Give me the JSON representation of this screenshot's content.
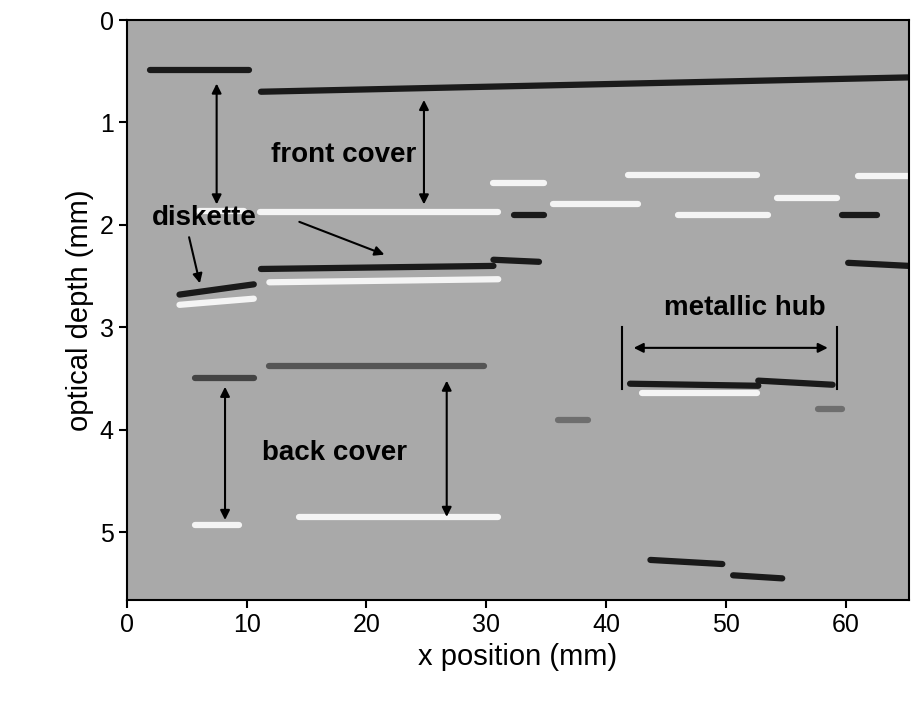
{
  "chart_data": {
    "type": "image",
    "x_label": "x position (mm)",
    "y_label": "optical depth (mm)",
    "xlim": [
      0,
      65.3
    ],
    "xticks": [
      0,
      10,
      20,
      30,
      40,
      50,
      60
    ],
    "ylim": [
      5.66,
      0
    ],
    "yticks": [
      0,
      1,
      2,
      3,
      4,
      5
    ],
    "reflections": [
      {
        "x": [
          1.9,
          10.2
        ],
        "depth": [
          0.49,
          0.49
        ],
        "color": "#1a1a1a"
      },
      {
        "x": [
          11.2,
          65.3
        ],
        "depth": [
          0.7,
          0.56
        ],
        "color": "#1a1a1a"
      },
      {
        "x": [
          32.3,
          34.8
        ],
        "depth": [
          1.9,
          1.9
        ],
        "color": "#1a1a1a"
      },
      {
        "x": [
          59.7,
          62.6
        ],
        "depth": [
          1.9,
          1.9
        ],
        "color": "#1a1a1a"
      },
      {
        "x": [
          11.2,
          30.6
        ],
        "depth": [
          2.43,
          2.4
        ],
        "color": "#1a1a1a"
      },
      {
        "x": [
          30.6,
          34.4
        ],
        "depth": [
          2.34,
          2.36
        ],
        "color": "#1a1a1a"
      },
      {
        "x": [
          4.4,
          10.6
        ],
        "depth": [
          2.68,
          2.58
        ],
        "color": "#1a1a1a"
      },
      {
        "x": [
          60.2,
          65.3
        ],
        "depth": [
          2.37,
          2.4
        ],
        "color": "#1a1a1a"
      },
      {
        "x": [
          11.9,
          29.8
        ],
        "depth": [
          3.38,
          3.38
        ],
        "color": "#555555"
      },
      {
        "x": [
          5.7,
          10.6
        ],
        "depth": [
          3.49,
          3.49
        ],
        "color": "#444444"
      },
      {
        "x": [
          42.0,
          52.7
        ],
        "depth": [
          3.55,
          3.57
        ],
        "color": "#1a1a1a"
      },
      {
        "x": [
          52.7,
          58.9
        ],
        "depth": [
          3.52,
          3.56
        ],
        "color": "#1a1a1a"
      },
      {
        "x": [
          43.7,
          49.7
        ],
        "depth": [
          5.27,
          5.31
        ],
        "color": "#1a1a1a"
      },
      {
        "x": [
          50.6,
          54.7
        ],
        "depth": [
          5.42,
          5.45
        ],
        "color": "#1a1a1a"
      },
      {
        "x": [
          36.0,
          38.5
        ],
        "depth": [
          3.9,
          3.9
        ],
        "color": "#6e6e6e"
      },
      {
        "x": [
          57.7,
          59.7
        ],
        "depth": [
          3.8,
          3.8
        ],
        "color": "#6e6e6e"
      },
      {
        "x": [
          11.1,
          31.0
        ],
        "depth": [
          1.87,
          1.87
        ],
        "color": "#f4f4f4"
      },
      {
        "x": [
          6.0,
          9.8
        ],
        "depth": [
          1.86,
          1.86
        ],
        "color": "#f4f4f4"
      },
      {
        "x": [
          30.6,
          34.8
        ],
        "depth": [
          1.59,
          1.59
        ],
        "color": "#f4f4f4"
      },
      {
        "x": [
          35.6,
          42.7
        ],
        "depth": [
          1.8,
          1.8
        ],
        "color": "#f4f4f4"
      },
      {
        "x": [
          46.0,
          53.5
        ],
        "depth": [
          1.9,
          1.9
        ],
        "color": "#f4f4f4"
      },
      {
        "x": [
          54.3,
          59.3
        ],
        "depth": [
          1.74,
          1.74
        ],
        "color": "#f4f4f4"
      },
      {
        "x": [
          41.8,
          52.6
        ],
        "depth": [
          1.51,
          1.51
        ],
        "color": "#f4f4f4"
      },
      {
        "x": [
          61.0,
          65.3
        ],
        "depth": [
          1.52,
          1.52
        ],
        "color": "#f4f4f4"
      },
      {
        "x": [
          11.9,
          31.0
        ],
        "depth": [
          2.56,
          2.53
        ],
        "color": "#f4f4f4"
      },
      {
        "x": [
          4.4,
          10.6
        ],
        "depth": [
          2.78,
          2.72
        ],
        "color": "#f4f4f4"
      },
      {
        "x": [
          14.4,
          31.0
        ],
        "depth": [
          4.85,
          4.85
        ],
        "color": "#f4f4f4"
      },
      {
        "x": [
          5.7,
          9.4
        ],
        "depth": [
          4.93,
          4.93
        ],
        "color": "#f4f4f4"
      },
      {
        "x": [
          43.0,
          52.6
        ],
        "depth": [
          3.64,
          3.64
        ],
        "color": "#f4f4f4"
      }
    ],
    "annotations": [
      {
        "text": "front cover",
        "x": 18.1,
        "y": 1.32,
        "double_arrows": [
          [
            [
              7.5,
              0.62
            ],
            [
              7.5,
              1.8
            ]
          ],
          [
            [
              24.8,
              0.78
            ],
            [
              24.8,
              1.8
            ]
          ]
        ],
        "arrows": [],
        "bars": []
      },
      {
        "text": "diskette",
        "x": 6.5,
        "y": 1.93,
        "double_arrows": [],
        "arrows": [
          [
            [
              14.4,
              1.97
            ],
            [
              21.5,
              2.29
            ]
          ],
          [
            [
              5.2,
              2.12
            ],
            [
              6.1,
              2.57
            ]
          ]
        ],
        "bars": []
      },
      {
        "text": "back cover",
        "x": 17.3,
        "y": 4.23,
        "double_arrows": [
          [
            [
              8.2,
              3.58
            ],
            [
              8.2,
              4.88
            ]
          ],
          [
            [
              26.7,
              3.52
            ],
            [
              26.7,
              4.85
            ]
          ]
        ],
        "arrows": [],
        "bars": []
      },
      {
        "text": "metallic hub",
        "x": 51.6,
        "y": 2.81,
        "double_arrows": [
          [
            [
              42.3,
              3.2
            ],
            [
              58.5,
              3.2
            ]
          ]
        ],
        "arrows": [],
        "bars": [
          [
            [
              41.3,
              3.0
            ],
            [
              41.3,
              3.6
            ]
          ],
          [
            [
              59.3,
              3.0
            ],
            [
              59.3,
              3.6
            ]
          ]
        ]
      }
    ]
  }
}
